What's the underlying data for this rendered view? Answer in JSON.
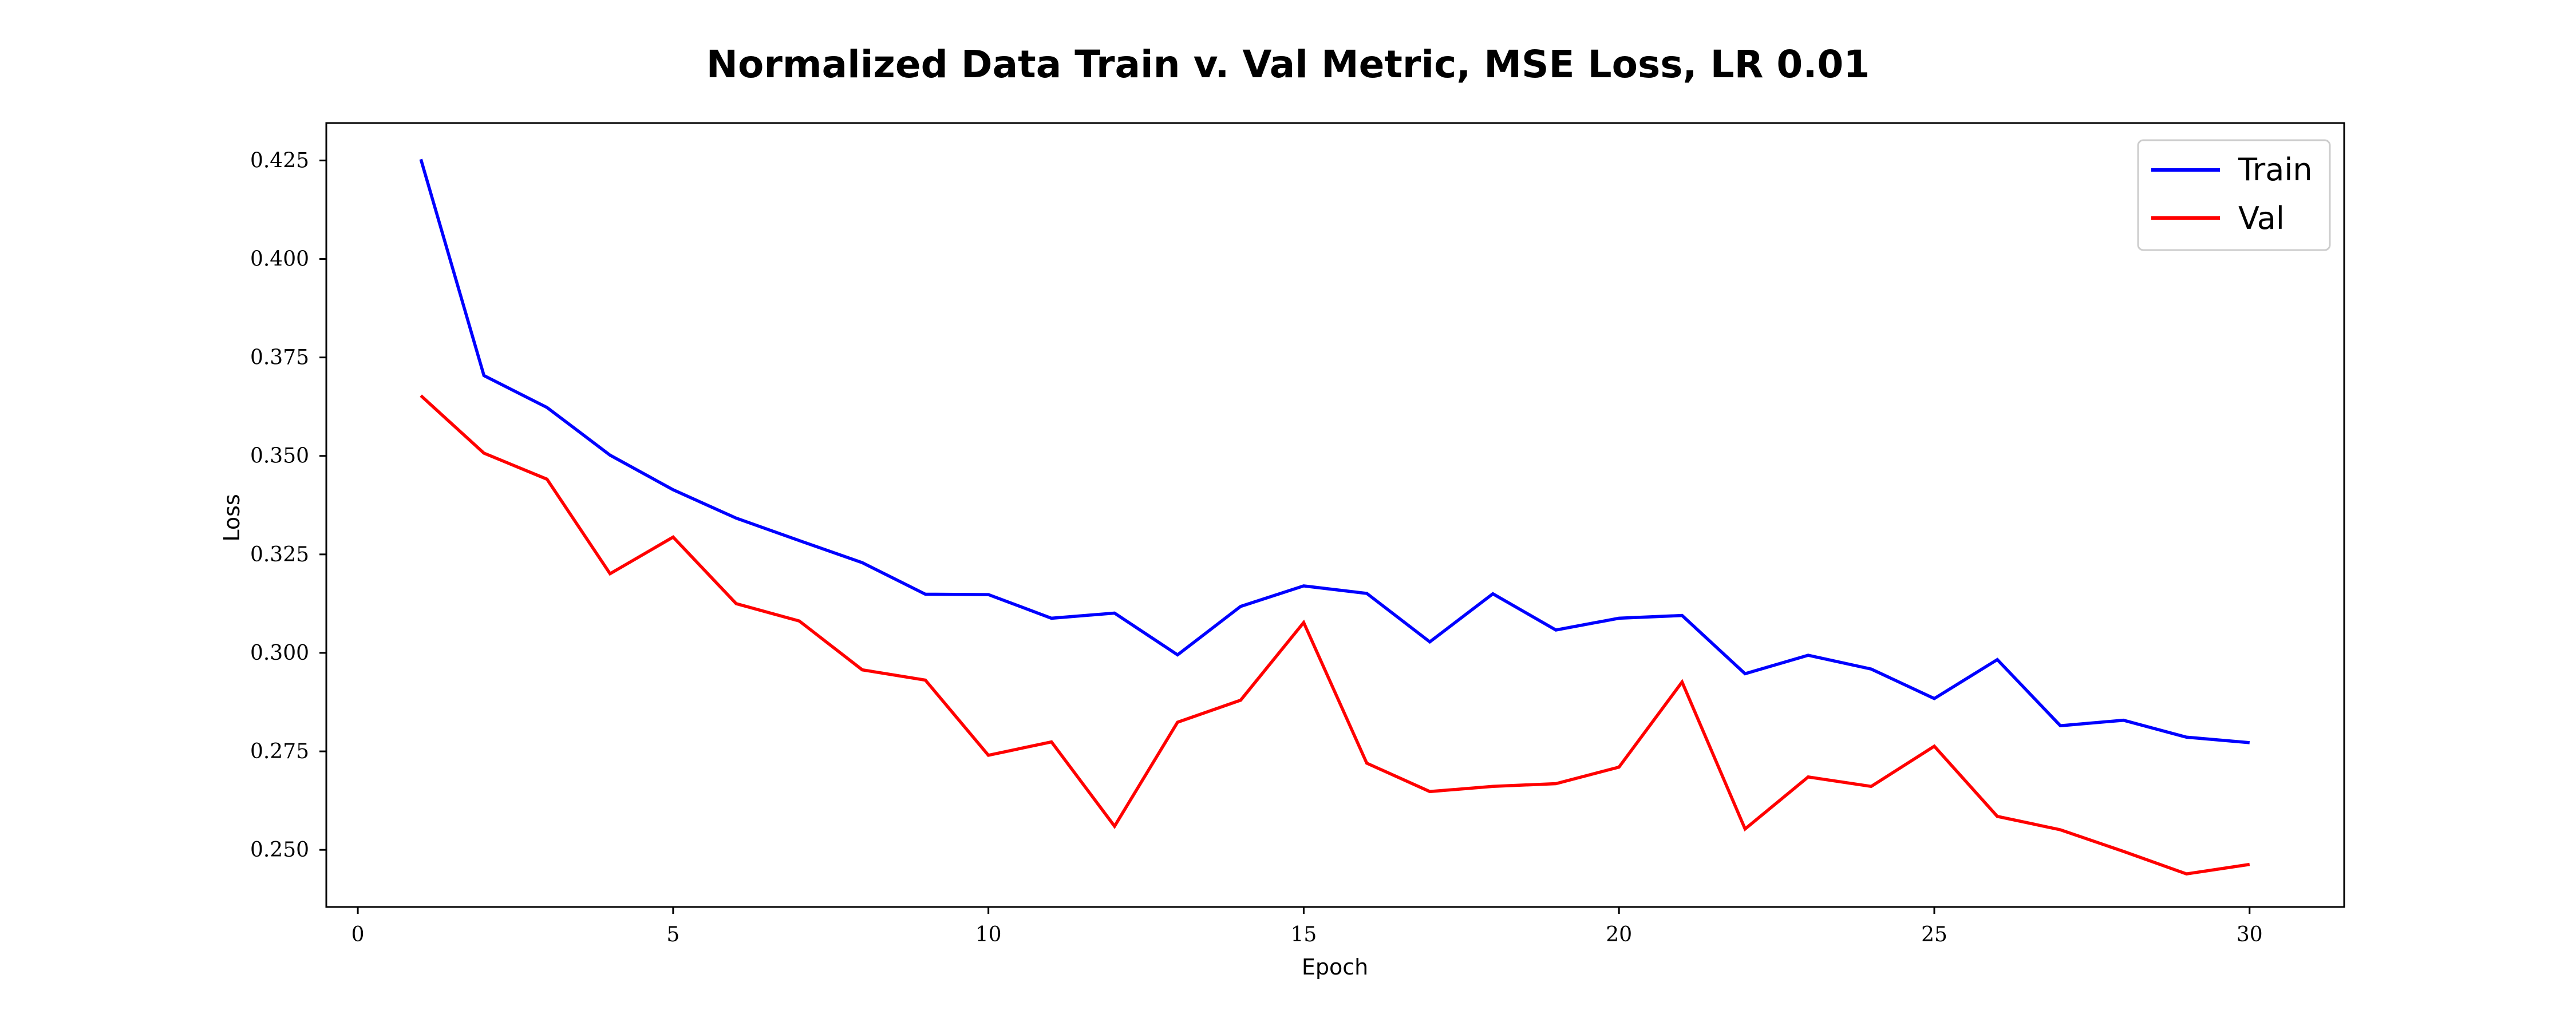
{
  "chart_data": {
    "type": "line",
    "title": "Normalized Data Train v. Val Metric, MSE Loss, LR 0.01",
    "xlabel": "Epoch",
    "ylabel": "Loss",
    "xlim": [
      -0.5,
      31.5
    ],
    "ylim": [
      0.2355,
      0.4345
    ],
    "xticks": [
      0,
      5,
      10,
      15,
      20,
      25,
      30
    ],
    "yticks": [
      0.25,
      0.275,
      0.3,
      0.325,
      0.35,
      0.375,
      0.4,
      0.425
    ],
    "ytick_labels": [
      "0.250",
      "0.275",
      "0.300",
      "0.325",
      "0.350",
      "0.375",
      "0.400",
      "0.425"
    ],
    "x": [
      1,
      2,
      3,
      4,
      5,
      6,
      7,
      8,
      9,
      10,
      11,
      12,
      13,
      14,
      15,
      16,
      17,
      18,
      19,
      20,
      21,
      22,
      23,
      24,
      25,
      26,
      27,
      28,
      29,
      30
    ],
    "series": [
      {
        "name": "Train",
        "color": "#0000ff",
        "values": [
          0.4253,
          0.3704,
          0.3623,
          0.3502,
          0.3414,
          0.3342,
          0.3285,
          0.3229,
          0.3149,
          0.3148,
          0.3088,
          0.3101,
          0.2995,
          0.3118,
          0.317,
          0.3151,
          0.3028,
          0.315,
          0.3058,
          0.3088,
          0.3095,
          0.2947,
          0.2994,
          0.2959,
          0.2884,
          0.2983,
          0.2815,
          0.2829,
          0.2786,
          0.2772
        ]
      },
      {
        "name": "Val",
        "color": "#ff0000",
        "values": [
          0.3653,
          0.3507,
          0.3441,
          0.3201,
          0.3294,
          0.3125,
          0.3081,
          0.2957,
          0.2931,
          0.274,
          0.2774,
          0.256,
          0.2824,
          0.288,
          0.3077,
          0.272,
          0.2648,
          0.2661,
          0.2668,
          0.271,
          0.2926,
          0.2553,
          0.2685,
          0.2661,
          0.2763,
          0.2585,
          0.2551,
          0.2496,
          0.2439,
          0.2463
        ]
      }
    ],
    "grid": false,
    "legend": "top-right"
  }
}
